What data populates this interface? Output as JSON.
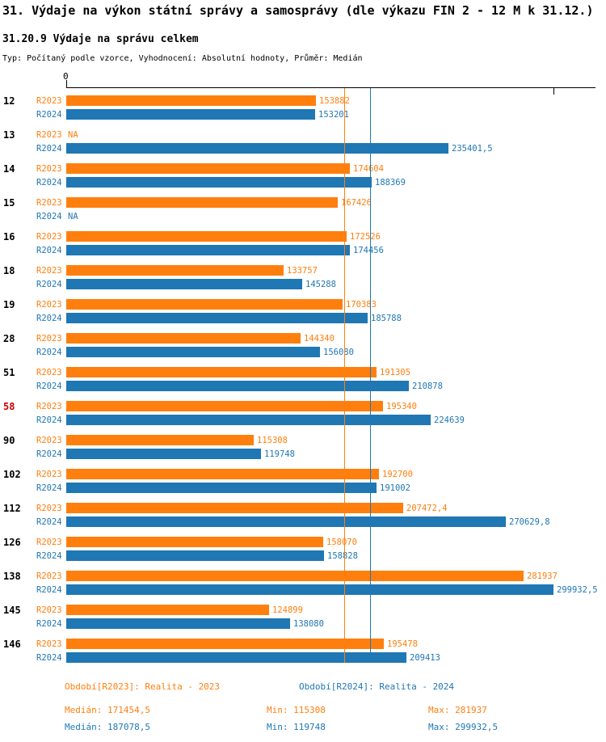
{
  "header": {
    "title": "31. Výdaje na výkon státní správy a samosprávy (dle výkazu FIN 2 - 12 M k 31.12.)",
    "subtitle": "31.20.9 Výdaje na správu celkem",
    "meta": "Typ: Počítaný podle vzorce, Vyhodnocení: Absolutní hodnoty, Průměr: Medián"
  },
  "colors": {
    "r2023": "#FF7F0E",
    "r2024": "#1F77B4",
    "highlight": "#CC0000",
    "axis": "#000000"
  },
  "axis": {
    "zero_label": "0"
  },
  "chart_data": {
    "type": "bar",
    "orientation": "horizontal",
    "xlim": [
      0,
      325000
    ],
    "axis_ticks": [
      0,
      300000
    ],
    "grid": false,
    "series": [
      {
        "name": "R2023",
        "period": "Realita - 2023",
        "color": "#FF7F0E"
      },
      {
        "name": "R2024",
        "period": "Realita - 2024",
        "color": "#1F77B4"
      }
    ],
    "median_lines": {
      "r2023": 171454.5,
      "r2024": 187078.5
    },
    "highlighted_category": "58",
    "rows": [
      {
        "cat": "12",
        "v2023": 153882,
        "l2023": "153882",
        "v2024": 153201,
        "l2024": "153201"
      },
      {
        "cat": "13",
        "v2023": null,
        "l2023": "NA",
        "v2024": 235401.5,
        "l2024": "235401,5"
      },
      {
        "cat": "14",
        "v2023": 174604,
        "l2023": "174604",
        "v2024": 188369,
        "l2024": "188369"
      },
      {
        "cat": "15",
        "v2023": 167426,
        "l2023": "167426",
        "v2024": null,
        "l2024": "NA"
      },
      {
        "cat": "16",
        "v2023": 172526,
        "l2023": "172526",
        "v2024": 174456,
        "l2024": "174456"
      },
      {
        "cat": "18",
        "v2023": 133757,
        "l2023": "133757",
        "v2024": 145288,
        "l2024": "145288"
      },
      {
        "cat": "19",
        "v2023": 170383,
        "l2023": "170383",
        "v2024": 185788,
        "l2024": "185788"
      },
      {
        "cat": "28",
        "v2023": 144340,
        "l2023": "144340",
        "v2024": 156080,
        "l2024": "156080"
      },
      {
        "cat": "51",
        "v2023": 191305,
        "l2023": "191305",
        "v2024": 210878,
        "l2024": "210878"
      },
      {
        "cat": "58",
        "highlight": true,
        "v2023": 195340,
        "l2023": "195340",
        "v2024": 224639,
        "l2024": "224639"
      },
      {
        "cat": "90",
        "v2023": 115308,
        "l2023": "115308",
        "v2024": 119748,
        "l2024": "119748"
      },
      {
        "cat": "102",
        "v2023": 192700,
        "l2023": "192700",
        "v2024": 191002,
        "l2024": "191002"
      },
      {
        "cat": "112",
        "v2023": 207472.4,
        "l2023": "207472,4",
        "v2024": 270629.8,
        "l2024": "270629,8"
      },
      {
        "cat": "126",
        "v2023": 158070,
        "l2023": "158070",
        "v2024": 158828,
        "l2024": "158828"
      },
      {
        "cat": "138",
        "v2023": 281937,
        "l2023": "281937",
        "v2024": 299932.5,
        "l2024": "299932,5"
      },
      {
        "cat": "145",
        "v2023": 124899,
        "l2023": "124899",
        "v2024": 138080,
        "l2024": "138080"
      },
      {
        "cat": "146",
        "v2023": 195478,
        "l2023": "195478",
        "v2024": 209413,
        "l2024": "209413"
      }
    ]
  },
  "legend": {
    "r2023": "Období[R2023]: Realita - 2023",
    "r2024": "Období[R2024]: Realita - 2024"
  },
  "stats": {
    "r2023": {
      "median": "Medián: 171454,5",
      "min": "Min: 115308",
      "max": "Max: 281937"
    },
    "r2024": {
      "median": "Medián: 187078,5",
      "min": "Min: 119748",
      "max": "Max: 299932,5"
    }
  }
}
